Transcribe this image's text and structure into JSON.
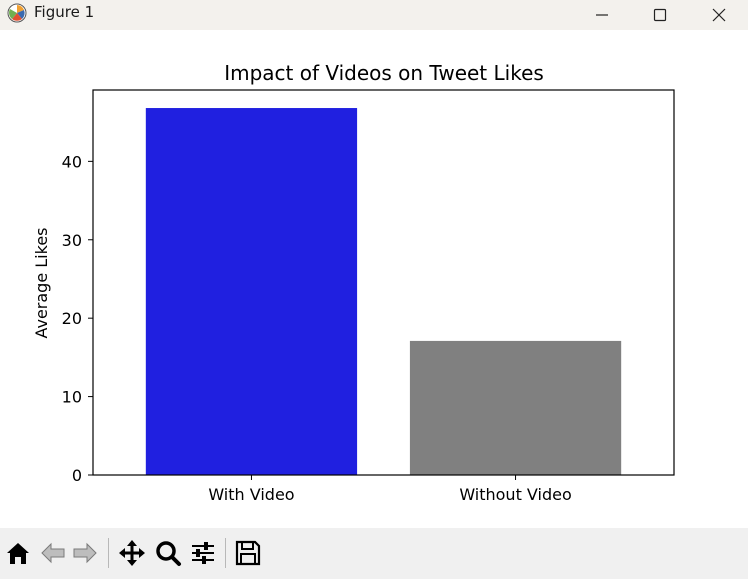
{
  "window": {
    "title": "Figure 1"
  },
  "toolbar": {
    "tools": [
      "home-icon",
      "back-arrow-icon",
      "forward-arrow-icon",
      "pan-icon",
      "zoom-icon",
      "configure-subplots-icon",
      "save-icon"
    ]
  },
  "colors": {
    "with_video": "#2020e0",
    "without_video": "#808080"
  },
  "chart_data": {
    "type": "bar",
    "title": "Impact of Videos on Tweet Likes",
    "xlabel": "",
    "ylabel": "Average Likes",
    "categories": [
      "With Video",
      "Without Video"
    ],
    "values": [
      46.8,
      17.1
    ],
    "bar_colors": [
      "#2020e0",
      "#808080"
    ],
    "ylim": [
      0,
      49.1
    ],
    "yticks": [
      0,
      10,
      20,
      30,
      40
    ],
    "ytick_labels": [
      "0",
      "10",
      "20",
      "30",
      "40"
    ],
    "grid": false
  }
}
